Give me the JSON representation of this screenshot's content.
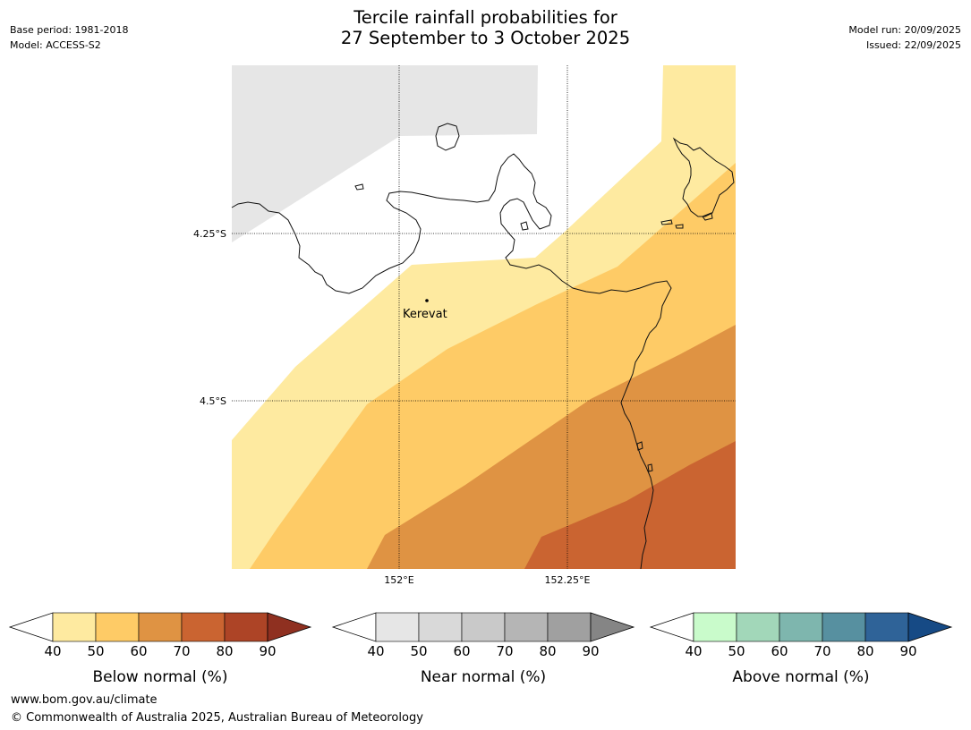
{
  "header": {
    "title_line1": "Tercile rainfall probabilities for",
    "title_line2": "27 September to 3 October 2025",
    "base_period": "Base period: 1981-2018",
    "model": "Model: ACCESS-S2",
    "model_run": "Model run: 20/09/2025",
    "issued": "Issued: 22/09/2025"
  },
  "map": {
    "lat_labels": [
      "4.25°S",
      "4.5°S"
    ],
    "lon_labels": [
      "152°E",
      "152.25°E"
    ],
    "place_label": "Kerevat"
  },
  "colorbars": [
    {
      "name": "below",
      "label": "Below normal (%)",
      "ticks": [
        "40",
        "50",
        "60",
        "70",
        "80",
        "90"
      ],
      "colors": [
        "#feeaa0",
        "#fecb66",
        "#df9343",
        "#ca6431",
        "#ad4426"
      ],
      "extend_color": "#8f3020"
    },
    {
      "name": "near",
      "label": "Near normal (%)",
      "ticks": [
        "40",
        "50",
        "60",
        "70",
        "80",
        "90"
      ],
      "colors": [
        "#e6e6e6",
        "#d9d9d9",
        "#c9c9c9",
        "#b5b5b5",
        "#a0a0a0"
      ],
      "extend_color": "#858585"
    },
    {
      "name": "above",
      "label": "Above normal (%)",
      "ticks": [
        "40",
        "50",
        "60",
        "70",
        "80",
        "90"
      ],
      "colors": [
        "#c9fbcb",
        "#a2d7b9",
        "#7eb6ae",
        "#5790a0",
        "#2f6398"
      ],
      "extend_color": "#164a85"
    }
  ],
  "footer": {
    "url": "www.bom.gov.au/climate",
    "copyright": "© Commonwealth of Australia 2025, Australian Bureau of Meteorology"
  }
}
